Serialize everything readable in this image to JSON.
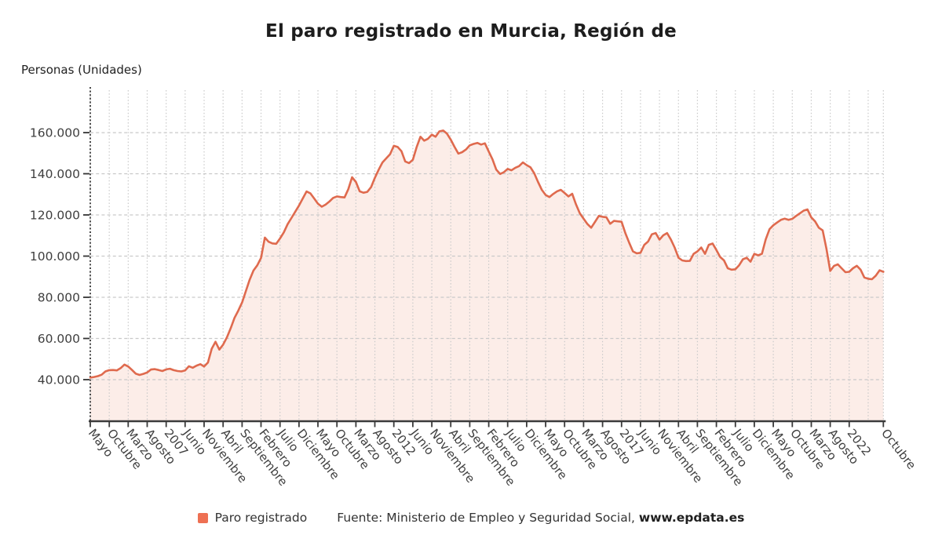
{
  "chart": {
    "title": "El paro registrado en Murcia, Región de",
    "unit_label": "Personas (Unidades)",
    "legend": {
      "series_label": "Paro registrado",
      "source_prefix": "Fuente: Ministerio de Empleo y Seguridad Social, ",
      "source_link": "www.epdata.es"
    },
    "colors": {
      "line": "#df6a4e",
      "legend_swatch": "#ee7053",
      "fill": "#fcede8",
      "grid": "#c9c9c9",
      "axis": "#3b3b3b",
      "y_axis_dotted": "#2a2a2a",
      "tick_text": "#3f3f3f",
      "title_text": "#1d1d1d"
    }
  },
  "chart_data": {
    "type": "area",
    "title": "El paro registrado en Murcia, Región de",
    "xlabel": "",
    "ylabel": "Personas (Unidades)",
    "x_start": "2005-05",
    "x_end": "2022-10",
    "frequency": "monthly",
    "grid": true,
    "legend_position": "bottom",
    "ylim": [
      19800,
      180600
    ],
    "y_ticks": [
      {
        "value": 40000,
        "label": "40.000"
      },
      {
        "value": 60000,
        "label": "60.000"
      },
      {
        "value": 80000,
        "label": "80.000"
      },
      {
        "value": 100000,
        "label": "100.000"
      },
      {
        "value": 120000,
        "label": "120.000"
      },
      {
        "value": 140000,
        "label": "140.000"
      },
      {
        "value": 160000,
        "label": "160.000"
      }
    ],
    "x_ticks": [
      {
        "month": 0,
        "label": "Mayo"
      },
      {
        "month": 5,
        "label": "Octubre"
      },
      {
        "month": 10,
        "label": "Marzo"
      },
      {
        "month": 15,
        "label": "Agosto"
      },
      {
        "month": 20,
        "label": "2007"
      },
      {
        "month": 25,
        "label": "Junio"
      },
      {
        "month": 30,
        "label": "Noviembre"
      },
      {
        "month": 35,
        "label": "Abril"
      },
      {
        "month": 40,
        "label": "Septiembre"
      },
      {
        "month": 45,
        "label": "Febrero"
      },
      {
        "month": 50,
        "label": "Julio"
      },
      {
        "month": 55,
        "label": "Diciembre"
      },
      {
        "month": 60,
        "label": "Mayo"
      },
      {
        "month": 65,
        "label": "Octubre"
      },
      {
        "month": 70,
        "label": "Marzo"
      },
      {
        "month": 75,
        "label": "Agosto"
      },
      {
        "month": 80,
        "label": "2012"
      },
      {
        "month": 85,
        "label": "Junio"
      },
      {
        "month": 90,
        "label": "Noviembre"
      },
      {
        "month": 95,
        "label": "Abril"
      },
      {
        "month": 100,
        "label": "Septiembre"
      },
      {
        "month": 105,
        "label": "Febrero"
      },
      {
        "month": 110,
        "label": "Julio"
      },
      {
        "month": 115,
        "label": "Diciembre"
      },
      {
        "month": 120,
        "label": "Mayo"
      },
      {
        "month": 125,
        "label": "Octubre"
      },
      {
        "month": 130,
        "label": "Marzo"
      },
      {
        "month": 135,
        "label": "Agosto"
      },
      {
        "month": 140,
        "label": "2017"
      },
      {
        "month": 145,
        "label": "Junio"
      },
      {
        "month": 150,
        "label": "Noviembre"
      },
      {
        "month": 155,
        "label": "Abril"
      },
      {
        "month": 160,
        "label": "Septiembre"
      },
      {
        "month": 165,
        "label": "Febrero"
      },
      {
        "month": 170,
        "label": "Julio"
      },
      {
        "month": 175,
        "label": "Diciembre"
      },
      {
        "month": 180,
        "label": "Mayo"
      },
      {
        "month": 185,
        "label": "Octubre"
      },
      {
        "month": 190,
        "label": "Marzo"
      },
      {
        "month": 195,
        "label": "Agosto"
      },
      {
        "month": 200,
        "label": "2022"
      },
      {
        "month": 209,
        "label": "Octubre"
      }
    ],
    "series": [
      {
        "name": "Paro registrado",
        "values": [
          41000,
          41300,
          41700,
          42400,
          44000,
          44600,
          44700,
          44500,
          45600,
          47300,
          46400,
          44700,
          42900,
          42300,
          42800,
          43500,
          44900,
          45100,
          44700,
          44200,
          45000,
          45300,
          44600,
          44200,
          44000,
          44500,
          46500,
          45800,
          46800,
          47500,
          46400,
          48300,
          55000,
          58400,
          54600,
          57000,
          60500,
          65000,
          70000,
          73500,
          77500,
          83000,
          88500,
          93000,
          95500,
          99100,
          109000,
          107000,
          106200,
          106000,
          108600,
          111500,
          115500,
          118500,
          121500,
          124600,
          128000,
          131400,
          130500,
          128000,
          125500,
          124000,
          125000,
          126500,
          128300,
          129000,
          128700,
          128500,
          132500,
          138300,
          136000,
          131500,
          130800,
          131200,
          133500,
          138000,
          142000,
          145500,
          147500,
          149500,
          153600,
          153000,
          151000,
          146000,
          145200,
          146800,
          152900,
          158000,
          156100,
          157000,
          159000,
          158000,
          160600,
          161000,
          159500,
          156600,
          153000,
          149800,
          150500,
          151800,
          153800,
          154500,
          155000,
          154200,
          154800,
          150800,
          147000,
          142000,
          139900,
          140800,
          142400,
          141700,
          142900,
          143700,
          145500,
          144200,
          143200,
          140200,
          136000,
          132200,
          129700,
          128700,
          130200,
          131500,
          132200,
          130700,
          129000,
          130300,
          125200,
          120800,
          118200,
          115600,
          113800,
          116600,
          119500,
          119100,
          118900,
          115700,
          117100,
          116900,
          116700,
          111200,
          106600,
          102300,
          101400,
          101600,
          105500,
          107100,
          110600,
          111200,
          108000,
          110100,
          111200,
          108100,
          104200,
          99200,
          97900,
          97600,
          97700,
          101100,
          102300,
          104200,
          101100,
          105500,
          106100,
          103000,
          99600,
          97900,
          94100,
          93400,
          93600,
          95600,
          98500,
          99200,
          97300,
          101100,
          100400,
          101100,
          108100,
          113100,
          115000,
          116300,
          117600,
          118200,
          117600,
          118100,
          119500,
          120800,
          122100,
          122700,
          118800,
          116900,
          113800,
          112500,
          103600,
          92800,
          95300,
          96000,
          94100,
          92200,
          92400,
          94100,
          95300,
          93400,
          89600,
          89000,
          88800,
          90500,
          93100,
          92400
        ]
      }
    ]
  }
}
